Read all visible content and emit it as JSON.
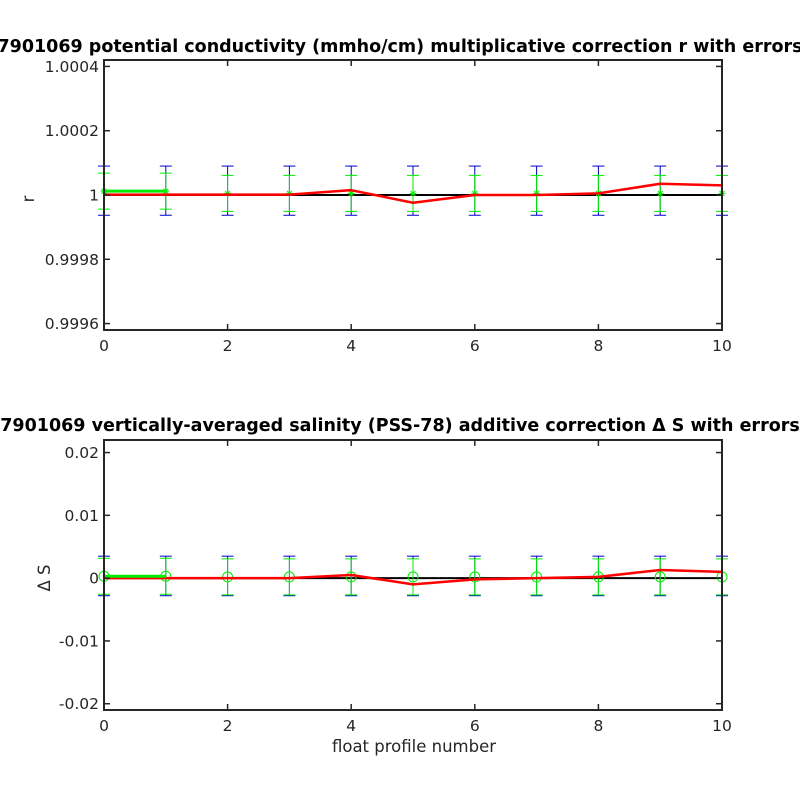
{
  "colors": {
    "axis": "#262626",
    "zero_line": "#000000",
    "correction": "#ff0000",
    "error_bar": "#0000cc",
    "points": "#00ee00"
  },
  "chart_data": [
    {
      "type": "line",
      "title": "7901069 potential conductivity (mmho/cm) multiplicative correction r with errors",
      "xlabel": "",
      "ylabel": "r",
      "xlim": [
        0,
        10
      ],
      "ylim": [
        0.99958,
        1.00042
      ],
      "x_ticks": [
        0,
        2,
        4,
        6,
        8,
        10
      ],
      "x_tick_labels": [
        "0",
        "2",
        "4",
        "6",
        "8",
        "10"
      ],
      "y_ticks": [
        0.9996,
        0.9998,
        1,
        1.0002,
        1.0004
      ],
      "y_tick_labels": [
        "0.9996",
        "0.9998",
        "1",
        "1.0002",
        "1.0004"
      ],
      "reference_line": 1,
      "marker": "star",
      "series": [
        {
          "x": [
            0,
            1,
            2,
            3,
            4,
            5,
            6,
            7,
            8,
            9,
            10
          ],
          "y": [
            1.000001,
            1.000001,
            1.000001,
            1.000001,
            1.000015,
            0.999976,
            1.0,
            1.0,
            1.000005,
            1.000035,
            1.00003
          ]
        },
        {
          "x": [
            0,
            1
          ],
          "y": [
            1.000012,
            1.000012
          ]
        }
      ],
      "error_bars": {
        "x": [
          0,
          1,
          2,
          3,
          4,
          5,
          6,
          7,
          8,
          9,
          10
        ],
        "center": [
          1.000012,
          1.000012,
          1.000005,
          1.000005,
          1.000005,
          1.000005,
          1.000005,
          1.000005,
          1.000005,
          1.000005,
          1.000005
        ],
        "lower": [
          0.999937,
          0.999937,
          0.999937,
          0.999937,
          0.999937,
          0.999937,
          0.999937,
          0.999937,
          0.999937,
          0.999937,
          0.999937
        ],
        "upper": [
          1.00009,
          1.00009,
          1.00009,
          1.00009,
          1.00009,
          1.00009,
          1.00009,
          1.00009,
          1.00009,
          1.00009,
          1.00009
        ]
      }
    },
    {
      "type": "line",
      "title": "7901069 vertically-averaged salinity (PSS-78) additive correction Δ S with errors",
      "xlabel": "float profile number",
      "ylabel": "Δ S",
      "xlim": [
        0,
        10
      ],
      "ylim": [
        -0.021,
        0.022
      ],
      "x_ticks": [
        0,
        2,
        4,
        6,
        8,
        10
      ],
      "x_tick_labels": [
        "0",
        "2",
        "4",
        "6",
        "8",
        "10"
      ],
      "y_ticks": [
        -0.02,
        -0.01,
        0,
        0.01,
        0.02
      ],
      "y_tick_labels": [
        "-0.02",
        "-0.01",
        "0",
        "0.01",
        "0.02"
      ],
      "reference_line": 0,
      "marker": "circle",
      "series": [
        {
          "x": [
            0,
            1,
            2,
            3,
            4,
            5,
            6,
            7,
            8,
            9,
            10
          ],
          "y": [
            0.0,
            0.0,
            0.0,
            0.0,
            0.0005,
            -0.001,
            -0.0002,
            0.0,
            0.0002,
            0.0013,
            0.001
          ]
        },
        {
          "x": [
            0,
            1
          ],
          "y": [
            0.0003,
            0.0003
          ]
        }
      ],
      "error_bars": {
        "x": [
          0,
          1,
          2,
          3,
          4,
          5,
          6,
          7,
          8,
          9,
          10
        ],
        "center": [
          0.0003,
          0.0003,
          0.0002,
          0.0002,
          0.0002,
          0.0002,
          0.0002,
          0.0002,
          0.0002,
          0.0002,
          0.0002
        ],
        "lower": [
          -0.0028,
          -0.0028,
          -0.0028,
          -0.0028,
          -0.0028,
          -0.0028,
          -0.0028,
          -0.0028,
          -0.0028,
          -0.0028,
          -0.0028
        ],
        "upper": [
          0.0035,
          0.0035,
          0.0035,
          0.0035,
          0.0035,
          0.0035,
          0.0035,
          0.0035,
          0.0035,
          0.0035,
          0.0035
        ]
      }
    }
  ]
}
